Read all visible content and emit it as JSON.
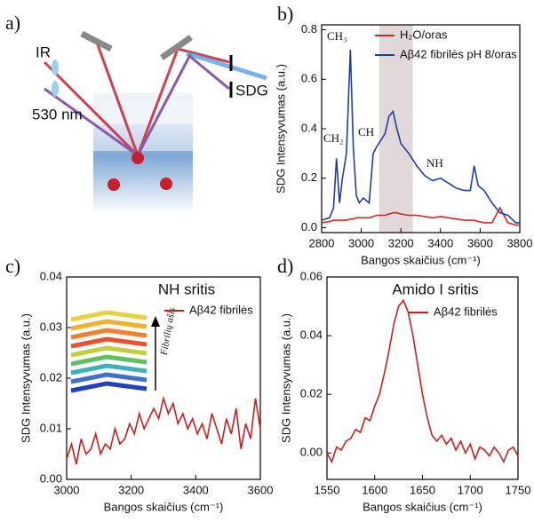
{
  "diagram": {
    "panel_label": "a)",
    "labels": [
      "IR",
      "530 nm",
      "SDG"
    ]
  },
  "chart_data": [
    {
      "type": "line",
      "panel_label": "b)",
      "ylabel": "SDG Intensyvumas (a.u.)",
      "xlabel": "Bangos skaičius (cm⁻¹)",
      "x": [
        2800,
        2840,
        2860,
        2875,
        2890,
        2905,
        2925,
        2945,
        2960,
        2975,
        2990,
        3010,
        3040,
        3060,
        3080,
        3120,
        3140,
        3160,
        3180,
        3200,
        3240,
        3280,
        3320,
        3360,
        3400,
        3440,
        3480,
        3520,
        3550,
        3570,
        3590,
        3620,
        3660,
        3700,
        3740,
        3780,
        3800
      ],
      "series": [
        {
          "name": "H₂O/oras",
          "color": "#d02828",
          "values": [
            0.02,
            0.025,
            0.03,
            0.03,
            0.03,
            0.03,
            0.03,
            0.035,
            0.035,
            0.04,
            0.04,
            0.04,
            0.04,
            0.045,
            0.05,
            0.05,
            0.055,
            0.06,
            0.06,
            0.055,
            0.05,
            0.05,
            0.045,
            0.04,
            0.045,
            0.04,
            0.035,
            0.03,
            0.03,
            0.03,
            0.025,
            0.02,
            0.02,
            0.08,
            0.02,
            0.01,
            0.01
          ]
        },
        {
          "name": "Aβ42 fibrilės pH 8/oras",
          "color": "#1f3fa0",
          "values": [
            0.03,
            0.04,
            0.08,
            0.28,
            0.1,
            0.2,
            0.3,
            0.72,
            0.32,
            0.13,
            0.1,
            0.12,
            0.1,
            0.3,
            0.33,
            0.38,
            0.45,
            0.47,
            0.4,
            0.34,
            0.3,
            0.25,
            0.21,
            0.19,
            0.2,
            0.18,
            0.16,
            0.15,
            0.15,
            0.25,
            0.17,
            0.15,
            0.1,
            0.06,
            0.05,
            0.02,
            0.02
          ]
        }
      ],
      "annotations": [
        "CH₃",
        "CH₂",
        "CH",
        "NH"
      ],
      "shaded_range": [
        3090,
        3260
      ],
      "xlim": [
        2800,
        3800
      ],
      "xticks": [
        2800,
        3000,
        3200,
        3400,
        3600,
        3800
      ],
      "ylim": [
        -0.02,
        0.82
      ],
      "yticks": [
        {
          "value": 0,
          "label": "0.0"
        },
        0.2,
        0.4,
        0.6,
        0.8
      ]
    },
    {
      "type": "line",
      "panel_label": "c)",
      "title": "NH sritis",
      "ylabel": "SDG Intensyvumas (a.u.)",
      "xlabel": "Bangos skaičius (cm⁻¹)",
      "x": [
        3000,
        3015,
        3030,
        3045,
        3060,
        3075,
        3090,
        3105,
        3120,
        3135,
        3150,
        3165,
        3180,
        3195,
        3210,
        3225,
        3240,
        3255,
        3270,
        3285,
        3300,
        3315,
        3330,
        3345,
        3360,
        3375,
        3390,
        3405,
        3420,
        3435,
        3450,
        3465,
        3480,
        3495,
        3510,
        3525,
        3540,
        3555,
        3570,
        3585,
        3600
      ],
      "series": [
        {
          "name": "Aβ42 fibrilės",
          "color": "#c81e1e",
          "values": [
            0.004,
            0.007,
            0.003,
            0.008,
            0.005,
            0.006,
            0.009,
            0.005,
            0.007,
            0.006,
            0.01,
            0.007,
            0.008,
            0.011,
            0.009,
            0.013,
            0.01,
            0.012,
            0.014,
            0.012,
            0.016,
            0.013,
            0.015,
            0.011,
            0.013,
            0.01,
            0.012,
            0.009,
            0.011,
            0.008,
            0.013,
            0.01,
            0.007,
            0.012,
            0.009,
            0.014,
            0.006,
            0.011,
            0.008,
            0.016,
            0.01
          ]
        }
      ],
      "annotations": [
        "Fibrilių ašis"
      ],
      "xlim": [
        3000,
        3600
      ],
      "xticks": [
        3000,
        3200,
        3400,
        3600
      ],
      "ylim": [
        0,
        0.04
      ],
      "yticks": [
        {
          "value": 0,
          "label": "0.00"
        },
        {
          "value": 0.01,
          "label": "0.01"
        },
        {
          "value": 0.02,
          "label": "0.02"
        },
        {
          "value": 0.03,
          "label": "0.03"
        },
        {
          "value": 0.04,
          "label": "0.04"
        }
      ]
    },
    {
      "type": "line",
      "panel_label": "d)",
      "title": "Amido I sritis",
      "ylabel": "SDG Intensyvumas (a.u.)",
      "xlabel": "Bangos skaičius (cm⁻¹)",
      "x": [
        1550,
        1555,
        1560,
        1565,
        1570,
        1575,
        1580,
        1585,
        1590,
        1595,
        1600,
        1605,
        1610,
        1615,
        1620,
        1625,
        1630,
        1635,
        1640,
        1645,
        1650,
        1655,
        1660,
        1665,
        1670,
        1675,
        1680,
        1685,
        1690,
        1695,
        1700,
        1705,
        1710,
        1715,
        1720,
        1725,
        1730,
        1735,
        1740,
        1745,
        1750
      ],
      "series": [
        {
          "name": "Aβ42 fibrilės",
          "color": "#c81e1e",
          "values": [
            0.0,
            -0.003,
            0.002,
            0.001,
            0.004,
            0.005,
            0.008,
            0.007,
            0.012,
            0.011,
            0.016,
            0.02,
            0.027,
            0.035,
            0.044,
            0.05,
            0.052,
            0.048,
            0.04,
            0.03,
            0.02,
            0.012,
            0.006,
            0.004,
            0.006,
            0.003,
            0.005,
            0.001,
            0.004,
            0.0,
            0.003,
            -0.002,
            0.002,
            0.001,
            -0.001,
            0.002,
            0.0,
            -0.003,
            0.001,
            0.002,
            -0.001
          ]
        }
      ],
      "xlim": [
        1550,
        1750
      ],
      "xticks": [
        1550,
        1600,
        1650,
        1700,
        1750
      ],
      "ylim": [
        -0.009,
        0.06
      ],
      "yticks": [
        {
          "value": 0,
          "label": "0.00"
        },
        {
          "value": 0.02,
          "label": "0.02"
        },
        {
          "value": 0.04,
          "label": "0.04"
        },
        {
          "value": 0.06,
          "label": "0.06"
        }
      ]
    }
  ]
}
